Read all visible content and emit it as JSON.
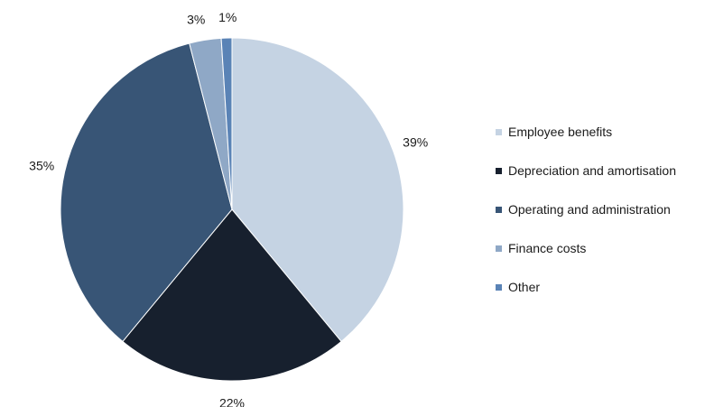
{
  "chart_data": {
    "type": "pie",
    "title": "",
    "slices": [
      {
        "label": "Employee benefits",
        "value": 39,
        "display": "39%",
        "color": "#c5d3e3"
      },
      {
        "label": "Depreciation and amortisation",
        "value": 22,
        "display": "22%",
        "color": "#17202e"
      },
      {
        "label": "Operating and administration",
        "value": 35,
        "display": "35%",
        "color": "#385576"
      },
      {
        "label": "Finance costs",
        "value": 3,
        "display": "3%",
        "color": "#8fa8c6"
      },
      {
        "label": "Other",
        "value": 1,
        "display": "1%",
        "color": "#5a83b6"
      }
    ],
    "start": "12 o'clock",
    "direction": "clockwise",
    "legend_position": "right"
  }
}
